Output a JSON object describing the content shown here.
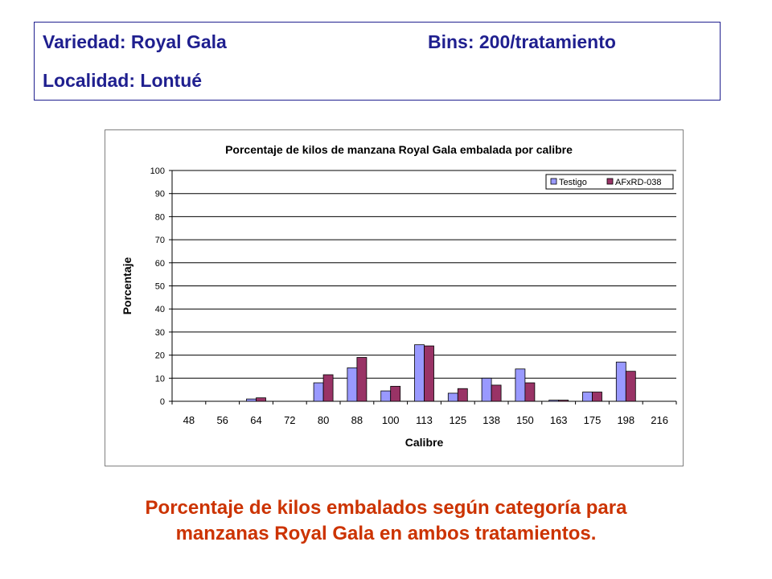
{
  "header": {
    "variety": "Variedad: Royal Gala",
    "bins": "Bins: 200/tratamiento",
    "locality": "Localidad: Lontué"
  },
  "caption": {
    "line1": "Porcentaje de kilos embalados según categoría para",
    "line2": "manzanas Royal Gala en ambos tratamientos."
  },
  "chart_data": {
    "type": "bar",
    "title": "Porcentaje de kilos de manzana Royal Gala embalada por calibre",
    "xlabel": "Calibre",
    "ylabel": "Porcentaje",
    "ylim": [
      0,
      100
    ],
    "yticks": [
      0,
      10,
      20,
      30,
      40,
      50,
      60,
      70,
      80,
      90,
      100
    ],
    "grid": true,
    "legend_position": "top-right",
    "categories": [
      "48",
      "56",
      "64",
      "72",
      "80",
      "88",
      "100",
      "113",
      "125",
      "138",
      "150",
      "163",
      "175",
      "198",
      "216"
    ],
    "series": [
      {
        "name": "Testigo",
        "color": "#9999ff",
        "values": [
          0,
          0,
          1,
          0,
          8,
          14.5,
          4.5,
          24.5,
          3.5,
          10,
          14,
          0.5,
          4,
          17,
          0
        ]
      },
      {
        "name": "AFxRD-038",
        "color": "#993366",
        "values": [
          0,
          0,
          1.5,
          0,
          11.5,
          19,
          6.5,
          24,
          5.5,
          7,
          8,
          0.5,
          4,
          13,
          0
        ]
      }
    ]
  }
}
